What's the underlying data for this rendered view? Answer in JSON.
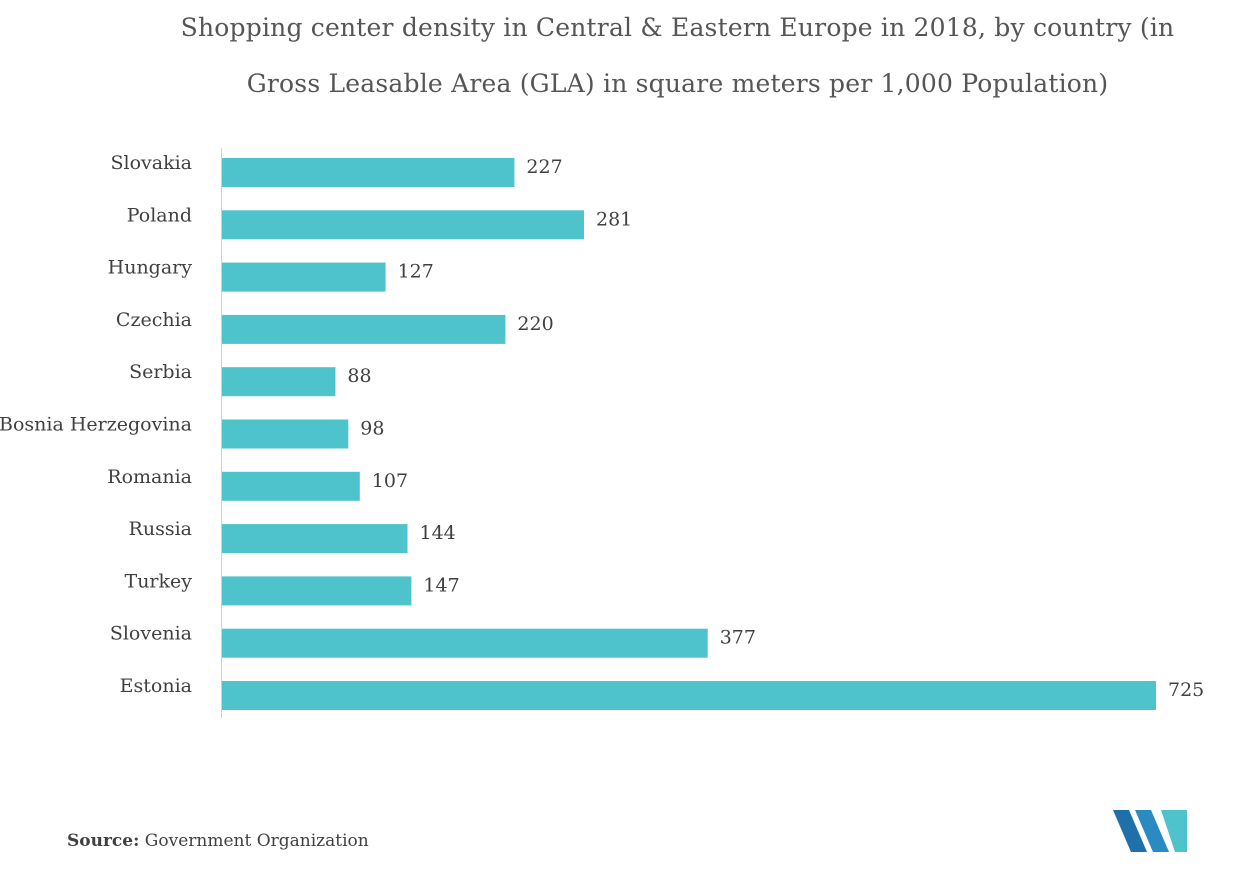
{
  "chart_data": {
    "type": "bar",
    "orientation": "horizontal",
    "title": "Shopping center density in Central & Eastern Europe in 2018, by country (in Gross Leasable Area (GLA) in square meters per 1,000 Population)",
    "categories": [
      "Slovakia",
      "Poland",
      "Hungary",
      "Czechia",
      "Serbia",
      "Bosnia Herzegovina",
      "Romania",
      "Russia",
      "Turkey",
      "Slovenia",
      "Estonia"
    ],
    "values": [
      227,
      281,
      127,
      220,
      88,
      98,
      107,
      144,
      147,
      377,
      725
    ],
    "xlim": [
      0,
      725
    ],
    "bar_color": "#4FC3CB",
    "data_labels": true,
    "grid": false,
    "legend": "none"
  },
  "source": {
    "label": "Source:",
    "text": "Government Organization"
  },
  "logo": {
    "icon": "mordor-intelligence-logo-icon",
    "colors": [
      "#1F6FA8",
      "#4FC3CB"
    ]
  }
}
